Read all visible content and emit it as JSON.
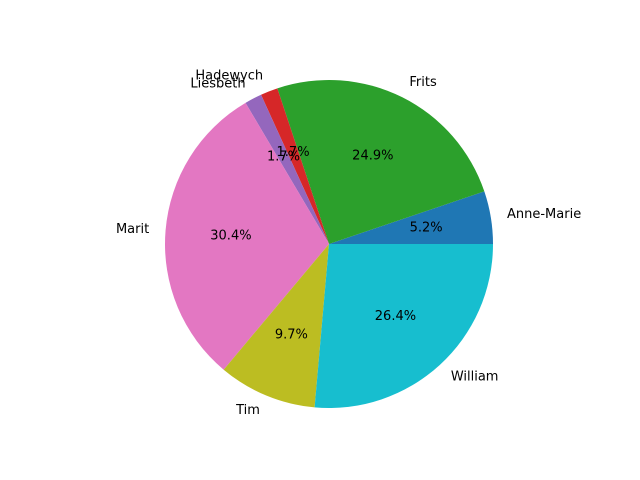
{
  "chart_data": {
    "type": "pie",
    "title": "",
    "slices": [
      {
        "label": "Anne-Marie",
        "value": 5.2,
        "pct_label": "5.2%",
        "color": "#1f77b4"
      },
      {
        "label": "Frits",
        "value": 24.9,
        "pct_label": "24.9%",
        "color": "#2ca02c"
      },
      {
        "label": "Hadewych",
        "value": 1.7,
        "pct_label": "1.7%",
        "color": "#d62728"
      },
      {
        "label": "Liesbeth",
        "value": 1.7,
        "pct_label": "1.7%",
        "color": "#9467bd"
      },
      {
        "label": "Marit",
        "value": 30.4,
        "pct_label": "30.4%",
        "color": "#e377c2"
      },
      {
        "label": "Tim",
        "value": 9.7,
        "pct_label": "9.7%",
        "color": "#bcbd22"
      },
      {
        "label": "William",
        "value": 26.4,
        "pct_label": "26.4%",
        "color": "#17becf"
      }
    ],
    "start_angle_deg": 0,
    "direction": "counterclockwise",
    "legend": "none"
  }
}
